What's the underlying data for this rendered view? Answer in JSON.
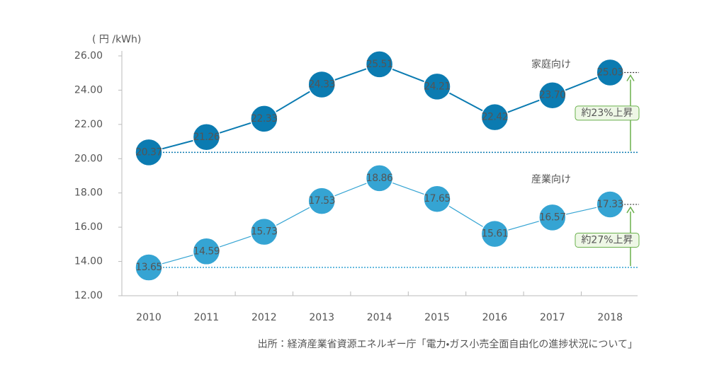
{
  "chart_data": {
    "type": "line",
    "y_axis_label": "( 円 /kWh)",
    "categories": [
      "2010",
      "2011",
      "2012",
      "2013",
      "2014",
      "2015",
      "2016",
      "2017",
      "2018"
    ],
    "series": [
      {
        "name": "家庭向け",
        "color": "#0b7bb1",
        "values": [
          20.37,
          21.26,
          22.33,
          24.33,
          25.51,
          24.21,
          22.42,
          23.7,
          25.03
        ],
        "value_labels": [
          "20.37",
          "21.26",
          "22.33",
          "24.33",
          "25.51",
          "24.21",
          "22.42",
          "23.70",
          "25.03"
        ]
      },
      {
        "name": "産業向け",
        "color": "#35a4d3",
        "values": [
          13.65,
          14.59,
          15.73,
          17.53,
          18.86,
          17.65,
          15.61,
          16.57,
          17.33
        ],
        "value_labels": [
          "13.65",
          "14.59",
          "15.73",
          "17.53",
          "18.86",
          "17.65",
          "15.61",
          "16.57",
          "17.33"
        ]
      }
    ],
    "annotations": [
      "約23%上昇",
      "約27%上昇"
    ],
    "annotation_color": "#6ab04c",
    "ylim": [
      12,
      26
    ],
    "yticks": [
      {
        "value": 12,
        "label": "12.00"
      },
      {
        "value": 14,
        "label": "14.00"
      },
      {
        "value": 16,
        "label": "16.00"
      },
      {
        "value": 18,
        "label": "18.00"
      },
      {
        "value": 20,
        "label": "20.00"
      },
      {
        "value": 22,
        "label": "22.00"
      },
      {
        "value": 24,
        "label": "24.00"
      },
      {
        "value": 26,
        "label": "26.00"
      }
    ],
    "source": "出所：経済産業省資源エネルギー庁「電力・ガス小売全面自由化の進捗状況について」"
  }
}
